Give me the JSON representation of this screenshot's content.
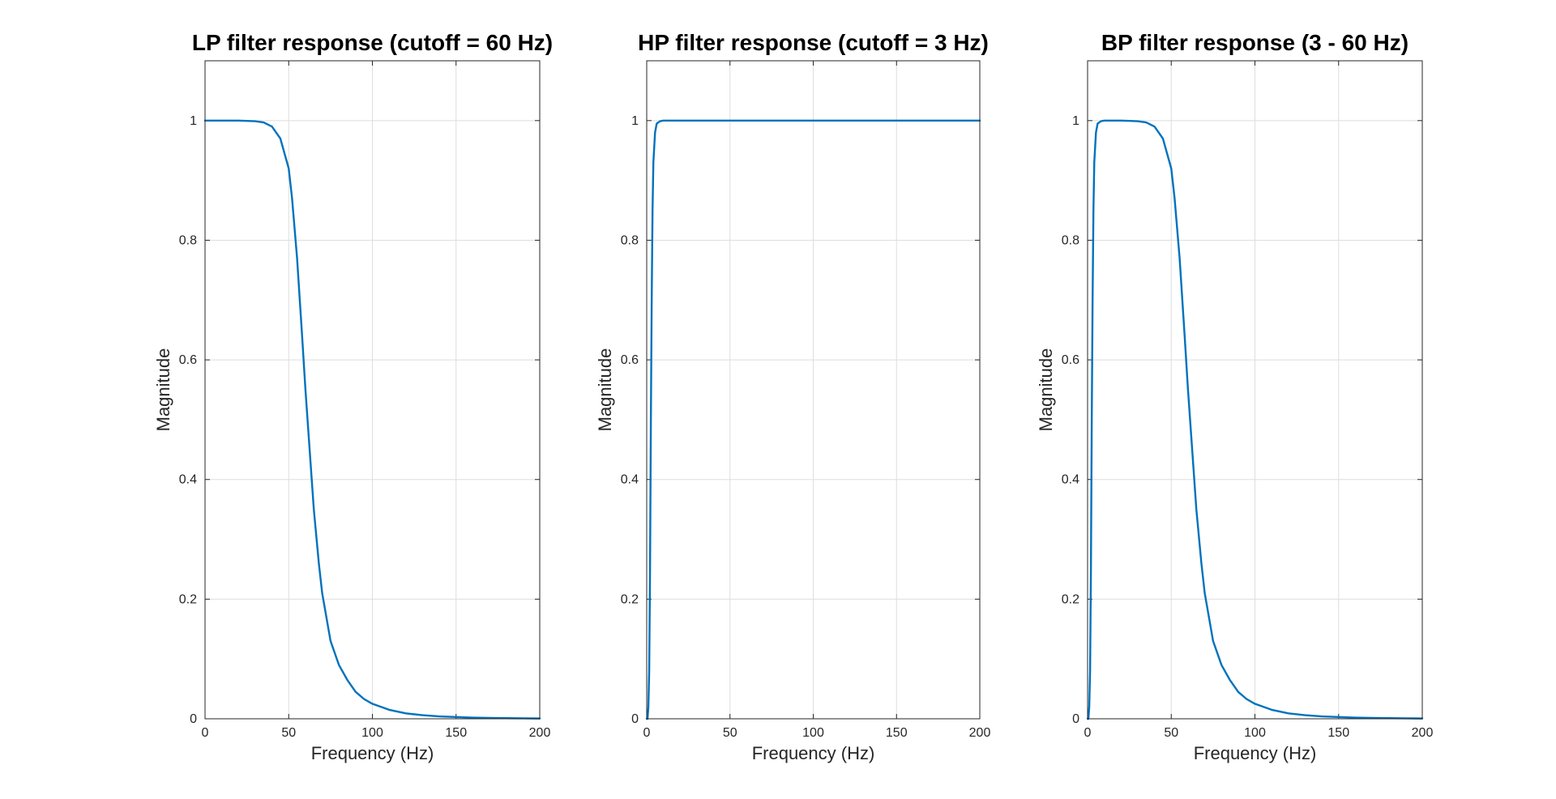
{
  "chart_data": [
    {
      "type": "line",
      "title": "LP filter response (cutoff = 60 Hz)",
      "xlabel": "Frequency (Hz)",
      "ylabel": "Magnitude",
      "xlim": [
        0,
        200
      ],
      "ylim": [
        0,
        1.1
      ],
      "xticks": [
        0,
        50,
        100,
        150,
        200
      ],
      "yticks": [
        0,
        0.2,
        0.4,
        0.6,
        0.8,
        1
      ],
      "xtick_labels": [
        "0",
        "50",
        "100",
        "150",
        "200"
      ],
      "ytick_labels": [
        "0",
        "0.2",
        "0.4",
        "0.6",
        "0.8",
        "1"
      ],
      "grid": true,
      "color": "#0072BD",
      "x": [
        0,
        10,
        20,
        30,
        35,
        40,
        45,
        50,
        52,
        55,
        58,
        60,
        62,
        65,
        68,
        70,
        75,
        80,
        85,
        90,
        95,
        100,
        110,
        120,
        130,
        140,
        150,
        160,
        170,
        180,
        190,
        200
      ],
      "y": [
        1,
        1,
        1,
        0.999,
        0.997,
        0.99,
        0.97,
        0.92,
        0.87,
        0.77,
        0.64,
        0.55,
        0.47,
        0.35,
        0.26,
        0.21,
        0.13,
        0.09,
        0.065,
        0.045,
        0.033,
        0.025,
        0.015,
        0.009,
        0.006,
        0.004,
        0.003,
        0.002,
        0.0015,
        0.001,
        0.0007,
        0.0005
      ]
    },
    {
      "type": "line",
      "title": "HP filter response (cutoff = 3 Hz)",
      "xlabel": "Frequency (Hz)",
      "ylabel": "Magnitude",
      "xlim": [
        0,
        200
      ],
      "ylim": [
        0,
        1.1
      ],
      "xticks": [
        0,
        50,
        100,
        150,
        200
      ],
      "yticks": [
        0,
        0.2,
        0.4,
        0.6,
        0.8,
        1
      ],
      "xtick_labels": [
        "0",
        "50",
        "100",
        "150",
        "200"
      ],
      "ytick_labels": [
        "0",
        "0.2",
        "0.4",
        "0.6",
        "0.8",
        "1"
      ],
      "grid": true,
      "color": "#0072BD",
      "x": [
        0,
        0.5,
        1,
        1.5,
        2,
        2.5,
        3,
        3.5,
        4,
        5,
        6,
        8,
        10,
        50,
        100,
        150,
        200
      ],
      "y": [
        0,
        0.0,
        0.02,
        0.08,
        0.25,
        0.5,
        0.7,
        0.85,
        0.93,
        0.98,
        0.995,
        0.999,
        1,
        1,
        1,
        1,
        1
      ]
    },
    {
      "type": "line",
      "title": "BP filter response (3 - 60 Hz)",
      "xlabel": "Frequency (Hz)",
      "ylabel": "Magnitude",
      "xlim": [
        0,
        200
      ],
      "ylim": [
        0,
        1.1
      ],
      "xticks": [
        0,
        50,
        100,
        150,
        200
      ],
      "yticks": [
        0,
        0.2,
        0.4,
        0.6,
        0.8,
        1
      ],
      "xtick_labels": [
        "0",
        "50",
        "100",
        "150",
        "200"
      ],
      "ytick_labels": [
        "0",
        "0.2",
        "0.4",
        "0.6",
        "0.8",
        "1"
      ],
      "grid": true,
      "color": "#0072BD",
      "x": [
        0,
        0.5,
        1,
        1.5,
        2,
        2.5,
        3,
        3.5,
        4,
        5,
        6,
        8,
        10,
        20,
        30,
        35,
        40,
        45,
        50,
        52,
        55,
        58,
        60,
        62,
        65,
        68,
        70,
        75,
        80,
        85,
        90,
        95,
        100,
        110,
        120,
        130,
        140,
        150,
        160,
        170,
        180,
        190,
        200
      ],
      "y": [
        0,
        0.0,
        0.02,
        0.08,
        0.25,
        0.5,
        0.7,
        0.85,
        0.93,
        0.98,
        0.995,
        0.999,
        1,
        1,
        0.999,
        0.997,
        0.99,
        0.97,
        0.92,
        0.87,
        0.77,
        0.64,
        0.55,
        0.47,
        0.35,
        0.26,
        0.21,
        0.13,
        0.09,
        0.065,
        0.045,
        0.033,
        0.025,
        0.015,
        0.009,
        0.006,
        0.004,
        0.003,
        0.002,
        0.0015,
        0.001,
        0.0007,
        0.0005
      ]
    }
  ]
}
